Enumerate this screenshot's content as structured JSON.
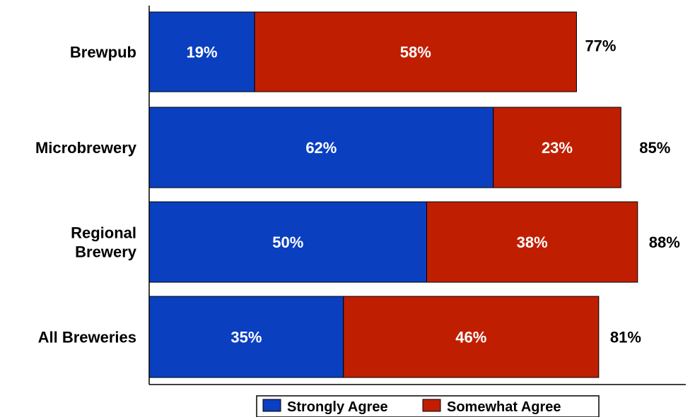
{
  "chart_data": {
    "type": "bar",
    "orientation": "horizontal",
    "stacked": true,
    "categories": [
      "Brewpub",
      "Microbrewery",
      "Regional Brewery",
      "All Breweries"
    ],
    "category_lines": [
      [
        "Brewpub"
      ],
      [
        "Microbrewery"
      ],
      [
        "Regional",
        "Brewery"
      ],
      [
        "All Breweries"
      ]
    ],
    "series": [
      {
        "name": "Strongly Agree",
        "values": [
          19,
          62,
          50,
          35
        ],
        "labels": [
          "19%",
          "62%",
          "50%",
          "35%"
        ],
        "color": "#0a3fc0"
      },
      {
        "name": "Somewhat Agree",
        "values": [
          58,
          23,
          38,
          46
        ],
        "labels": [
          "58%",
          "23%",
          "38%",
          "46%"
        ],
        "color": "#c01e00"
      }
    ],
    "totals": [
      77,
      85,
      88,
      81
    ],
    "total_labels": [
      "77%",
      "85%",
      "88%",
      "81%"
    ],
    "title": "",
    "xlabel": "",
    "ylabel": "",
    "xlim": [
      0,
      100
    ],
    "grid": false,
    "legend": {
      "position": "bottom",
      "entries": [
        "Strongly Agree",
        "Somewhat Agree"
      ]
    }
  }
}
